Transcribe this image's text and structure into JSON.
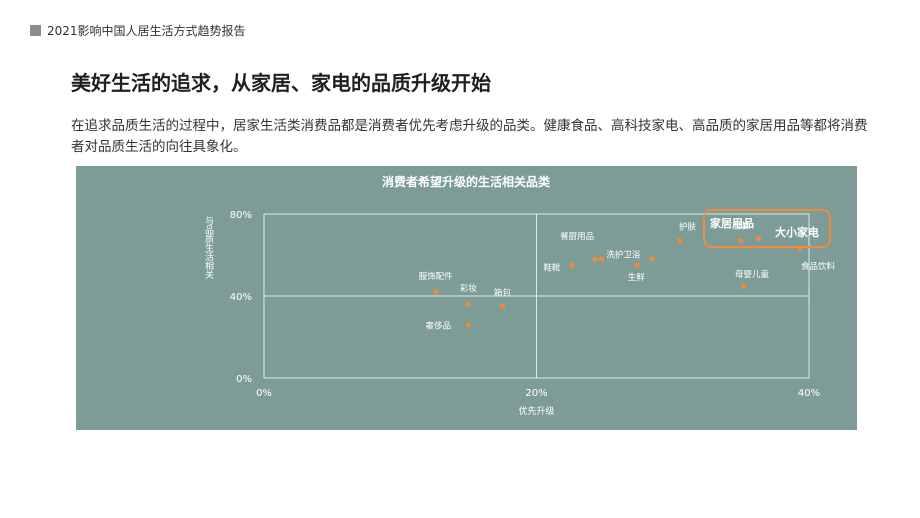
{
  "header": {
    "report_title": "2021影响中国人居生活方式趋势报告"
  },
  "slide": {
    "title": "美好生活的追求，从家居、家电的品质升级开始",
    "description": "在追求品质生活的过程中，居家生活类消费品都是消费者优先考虑升级的品类。健康食品、高科技家电、高品质的家居用品等都将消费者对品质生活的向往具象化。"
  },
  "chart_data": {
    "type": "scatter",
    "title": "消费者希望升级的生活相关品类",
    "xlabel": "优先升级",
    "ylabel": "与品质生活相关",
    "xlim": [
      0,
      40
    ],
    "ylim": [
      0,
      80
    ],
    "x_ticks": [
      "0%",
      "20%",
      "40%"
    ],
    "y_ticks": [
      "0%",
      "40%",
      "80%"
    ],
    "grid": true,
    "points": [
      {
        "label": "服饰配件",
        "x": 12.6,
        "y": 42
      },
      {
        "label": "彩妆",
        "x": 15.0,
        "y": 36
      },
      {
        "label": "箱包",
        "x": 17.5,
        "y": 35
      },
      {
        "label": "奢侈品",
        "x": 15.0,
        "y": 26
      },
      {
        "label": "鞋靴",
        "x": 22.6,
        "y": 55
      },
      {
        "label": "餐厨用品",
        "x": 24.3,
        "y": 58
      },
      {
        "label": "",
        "x": 24.8,
        "y": 58
      },
      {
        "label": "洗护卫浴",
        "x": 27.4,
        "y": 55
      },
      {
        "label": "生鲜",
        "x": 28.5,
        "y": 58
      },
      {
        "label": "护肤",
        "x": 30.5,
        "y": 67
      },
      {
        "label": "服装",
        "x": 35.0,
        "y": 67
      },
      {
        "label": "家居用品",
        "x": 36.3,
        "y": 68
      },
      {
        "label": "大小家电",
        "x": 39.3,
        "y": 63
      },
      {
        "label": "食品饮料",
        "x": 35.2,
        "y": 45
      },
      {
        "label": "母婴儿童",
        "x": 35.2,
        "y": 45
      }
    ],
    "highlighted": [
      "家居用品",
      "大小家电"
    ],
    "colors": {
      "background": "#7e9c97",
      "point": "#f08a3c",
      "highlight_box": "#f08a3c",
      "text": "#ffffff"
    }
  }
}
